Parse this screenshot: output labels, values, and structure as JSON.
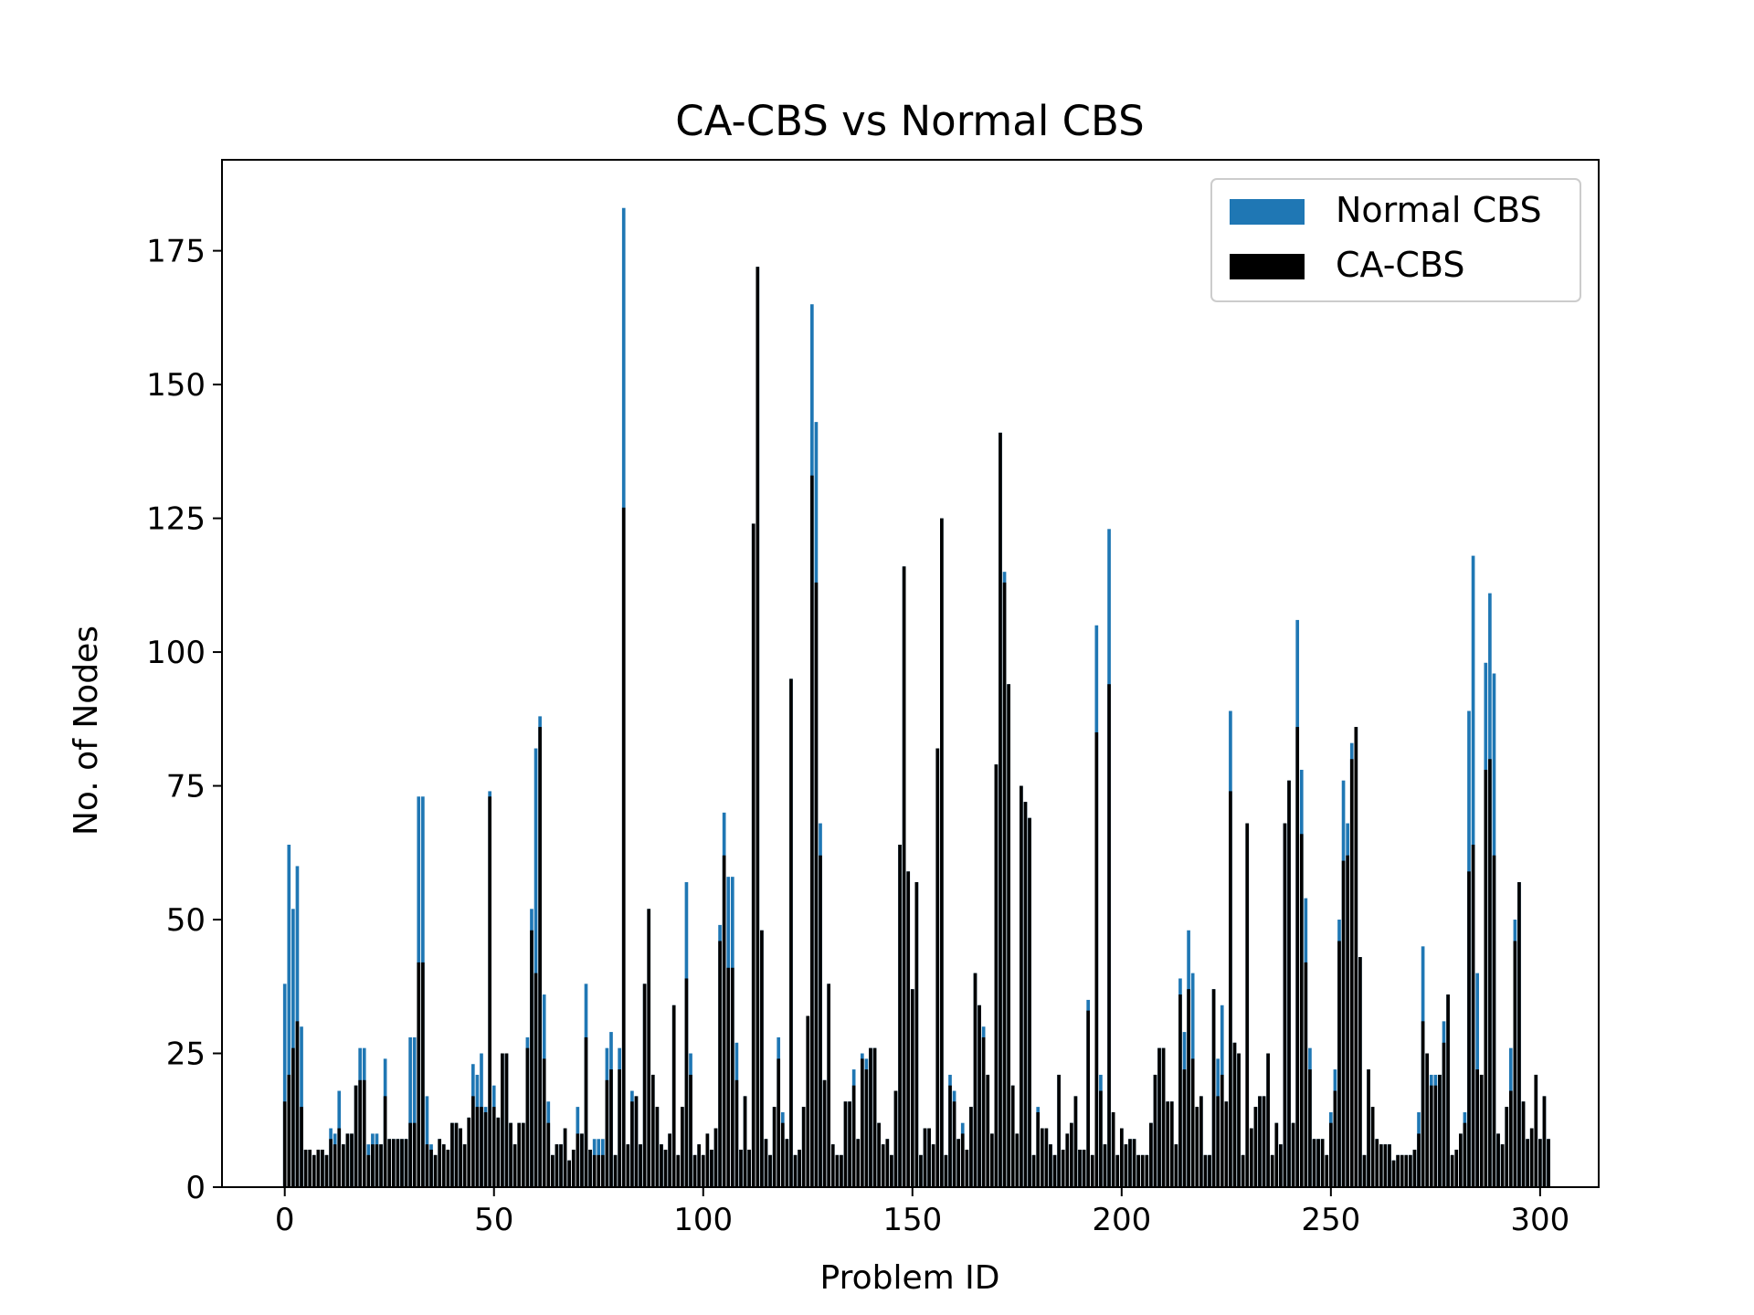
{
  "chart_data": {
    "type": "bar",
    "title": "CA-CBS vs Normal CBS",
    "xlabel": "Problem ID",
    "ylabel": "No. of Nodes",
    "xlim": [
      -15,
      314
    ],
    "ylim": [
      0,
      192
    ],
    "x_ticks": [
      0,
      50,
      100,
      150,
      200,
      250,
      300
    ],
    "y_ticks": [
      0,
      25,
      50,
      75,
      100,
      125,
      150,
      175
    ],
    "grid": false,
    "legend_position": "top-right",
    "colors": {
      "normal": "#1f77b4",
      "ca": "#000000"
    },
    "series": [
      {
        "name": "Normal CBS",
        "values": [
          38,
          64,
          52,
          60,
          30,
          7,
          7,
          6,
          7,
          7,
          6,
          11,
          10,
          18,
          8,
          10,
          10,
          19,
          26,
          26,
          8,
          10,
          10,
          8,
          24,
          9,
          9,
          9,
          9,
          9,
          28,
          28,
          73,
          73,
          17,
          8,
          6,
          9,
          8,
          7,
          12,
          12,
          11,
          8,
          13,
          23,
          21,
          25,
          15,
          74,
          19,
          13,
          25,
          25,
          12,
          8,
          12,
          12,
          28,
          52,
          82,
          88,
          36,
          16,
          6,
          8,
          8,
          11,
          5,
          7,
          15,
          10,
          38,
          7,
          9,
          9,
          9,
          26,
          29,
          6,
          26,
          183,
          8,
          18,
          17,
          8,
          38,
          52,
          21,
          15,
          8,
          7,
          10,
          34,
          6,
          15,
          57,
          25,
          6,
          8,
          6,
          10,
          7,
          11,
          49,
          70,
          58,
          58,
          27,
          7,
          17,
          7,
          124,
          172,
          48,
          9,
          6,
          15,
          28,
          14,
          9,
          95,
          6,
          7,
          15,
          32,
          165,
          143,
          68,
          20,
          38,
          8,
          6,
          6,
          16,
          16,
          22,
          9,
          25,
          24,
          26,
          26,
          12,
          8,
          9,
          6,
          18,
          64,
          116,
          59,
          37,
          57,
          6,
          11,
          11,
          8,
          82,
          125,
          6,
          21,
          18,
          9,
          12,
          7,
          15,
          40,
          34,
          30,
          21,
          10,
          79,
          141,
          115,
          94,
          19,
          10,
          75,
          72,
          69,
          6,
          15,
          11,
          11,
          8,
          6,
          21,
          7,
          10,
          12,
          17,
          7,
          7,
          35,
          6,
          105,
          21,
          8,
          123,
          14,
          6,
          11,
          8,
          9,
          9,
          6,
          6,
          6,
          12,
          21,
          26,
          26,
          16,
          16,
          8,
          39,
          29,
          48,
          40,
          15,
          17,
          6,
          6,
          37,
          24,
          34,
          16,
          89,
          27,
          25,
          6,
          68,
          11,
          15,
          17,
          17,
          25,
          6,
          12,
          8,
          68,
          76,
          12,
          106,
          78,
          54,
          26,
          9,
          9,
          9,
          6,
          14,
          22,
          50,
          76,
          68,
          83,
          86,
          43,
          6,
          22,
          15,
          9,
          8,
          8,
          8,
          5,
          6,
          6,
          6,
          6,
          7,
          14,
          45,
          25,
          21,
          21,
          21,
          31,
          36,
          6,
          7,
          10,
          14,
          89,
          118,
          40,
          21,
          98,
          111,
          96,
          10,
          8,
          15,
          26,
          50,
          57,
          16,
          9,
          11,
          21,
          9,
          17,
          9
        ]
      },
      {
        "name": "CA-CBS",
        "values": [
          16,
          21,
          26,
          31,
          15,
          7,
          7,
          6,
          7,
          7,
          6,
          9,
          8,
          11,
          8,
          10,
          10,
          19,
          20,
          20,
          6,
          8,
          8,
          8,
          17,
          9,
          9,
          9,
          9,
          9,
          12,
          12,
          42,
          42,
          8,
          7,
          6,
          9,
          8,
          7,
          12,
          12,
          11,
          8,
          13,
          17,
          15,
          15,
          14,
          73,
          15,
          13,
          25,
          25,
          12,
          8,
          12,
          12,
          26,
          48,
          40,
          86,
          24,
          12,
          6,
          8,
          8,
          11,
          5,
          7,
          10,
          10,
          28,
          7,
          6,
          6,
          6,
          20,
          22,
          6,
          22,
          127,
          8,
          16,
          17,
          8,
          38,
          52,
          21,
          15,
          8,
          7,
          10,
          34,
          6,
          15,
          39,
          21,
          6,
          8,
          6,
          10,
          7,
          11,
          46,
          62,
          41,
          41,
          20,
          7,
          17,
          7,
          124,
          172,
          48,
          9,
          6,
          15,
          24,
          12,
          9,
          95,
          6,
          7,
          15,
          32,
          133,
          113,
          62,
          20,
          38,
          8,
          6,
          6,
          16,
          16,
          19,
          9,
          24,
          22,
          26,
          26,
          12,
          8,
          9,
          6,
          18,
          64,
          116,
          59,
          37,
          57,
          6,
          11,
          11,
          8,
          82,
          125,
          6,
          19,
          16,
          9,
          10,
          7,
          15,
          40,
          34,
          28,
          21,
          10,
          79,
          141,
          113,
          94,
          19,
          10,
          75,
          72,
          69,
          6,
          14,
          11,
          11,
          8,
          6,
          21,
          7,
          10,
          12,
          17,
          7,
          7,
          33,
          6,
          85,
          18,
          8,
          94,
          14,
          6,
          11,
          8,
          9,
          9,
          6,
          6,
          6,
          12,
          21,
          26,
          26,
          16,
          16,
          8,
          36,
          22,
          37,
          24,
          15,
          17,
          6,
          6,
          37,
          17,
          21,
          16,
          74,
          27,
          25,
          6,
          68,
          11,
          15,
          17,
          17,
          25,
          6,
          12,
          8,
          68,
          76,
          12,
          86,
          66,
          42,
          22,
          9,
          9,
          9,
          6,
          12,
          18,
          46,
          61,
          62,
          80,
          86,
          43,
          6,
          22,
          15,
          9,
          8,
          8,
          8,
          5,
          6,
          6,
          6,
          6,
          7,
          10,
          31,
          25,
          19,
          19,
          21,
          27,
          36,
          6,
          7,
          10,
          12,
          59,
          64,
          22,
          21,
          78,
          80,
          62,
          10,
          8,
          15,
          18,
          46,
          57,
          16,
          9,
          11,
          21,
          9,
          17,
          9
        ]
      }
    ]
  }
}
